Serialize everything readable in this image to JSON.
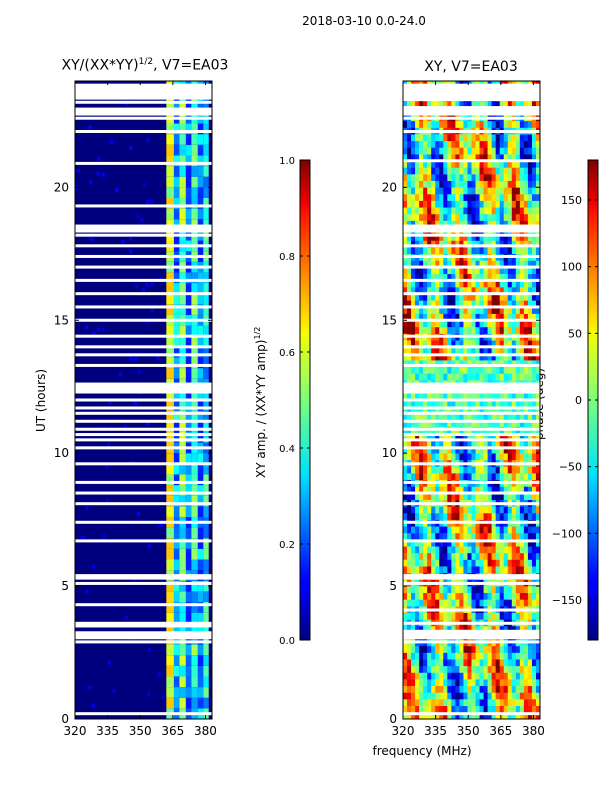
{
  "suptitle": "2018-03-10 0.0-24.0",
  "chart_data": [
    {
      "type": "heatmap",
      "name": "amplitude",
      "title_main": "XY/(XX*YY)",
      "title_sup": "1/2",
      "title_tail": ", V7=EA03",
      "xlabel": "",
      "ylabel": "UT (hours)",
      "xlim": [
        320,
        383
      ],
      "ylim": [
        0,
        24
      ],
      "xticks": [
        320,
        335,
        350,
        365,
        380
      ],
      "yticks": [
        0,
        5,
        10,
        15,
        20
      ],
      "colorbar": {
        "label_main": "XY amp. / (XX*YY amp)",
        "label_sup": "1/2",
        "range": [
          0.0,
          1.0
        ],
        "ticks": [
          "0.0",
          "0.2",
          "0.4",
          "0.6",
          "0.8",
          "1.0"
        ],
        "tick_values": [
          0.0,
          0.2,
          0.4,
          0.6,
          0.8,
          1.0
        ]
      },
      "colors": {
        "background": "#00007f",
        "band_cyan": "#23ffd4",
        "band_blue": "#1f7fff",
        "band_yellow": "#e1ff1c",
        "gap": "#ffffff"
      },
      "bright_band_mhz": [
        360,
        380
      ],
      "gaps_hours": [
        0.2,
        2.9,
        3.2,
        3.5,
        3.6,
        4.3,
        5.1,
        5.3,
        6.7,
        7.4,
        8.1,
        8.5,
        8.9,
        9.6,
        10.2,
        10.5,
        10.7,
        10.9,
        11.2,
        11.5,
        11.7,
        12.0,
        12.3,
        12.6,
        13.3,
        13.7,
        14.0,
        14.4,
        15.0,
        15.5,
        16.0,
        16.5,
        17.0,
        17.4,
        17.8,
        18.2,
        18.5,
        19.3,
        20.9,
        22.1,
        22.6,
        23.2,
        23.5,
        23.8
      ]
    },
    {
      "type": "heatmap",
      "name": "phase",
      "title": "XY, V7=EA03",
      "xlabel": "frequency (MHz)",
      "ylabel": "",
      "xlim": [
        320,
        383
      ],
      "ylim": [
        0,
        24
      ],
      "xticks": [
        320,
        335,
        350,
        365,
        380
      ],
      "yticks": [
        0,
        5,
        10,
        15,
        20
      ],
      "colorbar": {
        "label": "phase (deg)",
        "range": [
          -180,
          180
        ],
        "ticks": [
          "−150",
          "−100",
          "−50",
          "0",
          "50",
          "100",
          "150"
        ],
        "tick_values": [
          -150,
          -100,
          -50,
          0,
          50,
          100,
          150
        ]
      },
      "gaps_hours": [
        0.2,
        2.9,
        3.3,
        3.6,
        4.1,
        5.1,
        5.3,
        6.7,
        7.4,
        8.1,
        8.5,
        8.9,
        9.6,
        10.2,
        10.5,
        10.7,
        10.9,
        11.2,
        11.5,
        11.7,
        12.0,
        12.3,
        12.6,
        13.3,
        13.7,
        14.0,
        14.4,
        15.0,
        15.5,
        16.0,
        16.5,
        17.0,
        17.4,
        17.8,
        18.2,
        18.5,
        21.0,
        22.1,
        22.6,
        23.0,
        23.3,
        23.6
      ]
    }
  ]
}
